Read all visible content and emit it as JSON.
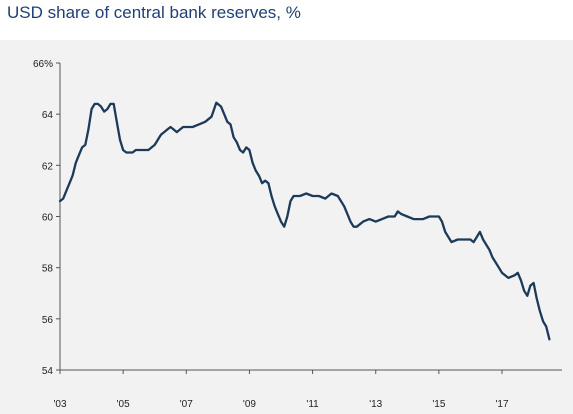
{
  "title": "USD share of central bank reserves, %",
  "colors": {
    "line": "#1c3a5a",
    "axis": "#555555",
    "panel": "#f2f2f2",
    "title": "#1f3f75"
  },
  "chart_data": {
    "type": "line",
    "title": "USD share of central bank reserves, %",
    "xlabel": "",
    "ylabel": "",
    "xlim": [
      2003.0,
      2018.9
    ],
    "ylim": [
      54,
      66
    ],
    "grid": false,
    "y_ticks": [
      {
        "value": 66,
        "label": "66%"
      },
      {
        "value": 64,
        "label": "64"
      },
      {
        "value": 62,
        "label": "62"
      },
      {
        "value": 60,
        "label": "60"
      },
      {
        "value": 58,
        "label": "58"
      },
      {
        "value": 56,
        "label": "56"
      },
      {
        "value": 54,
        "label": "54"
      }
    ],
    "x_ticks": [
      {
        "value": 2003,
        "label": "'03"
      },
      {
        "value": 2005,
        "label": "'05"
      },
      {
        "value": 2007,
        "label": "'07"
      },
      {
        "value": 2009,
        "label": "'09"
      },
      {
        "value": 2011,
        "label": "'11"
      },
      {
        "value": 2013,
        "label": "'13"
      },
      {
        "value": 2015,
        "label": "'15"
      },
      {
        "value": 2017,
        "label": "'17"
      }
    ],
    "series": [
      {
        "x": [
          2003.0,
          2003.1,
          2003.2,
          2003.3,
          2003.4,
          2003.5,
          2003.6,
          2003.7,
          2003.8,
          2003.9,
          2004.0,
          2004.1,
          2004.2,
          2004.3,
          2004.4,
          2004.5,
          2004.6,
          2004.7,
          2004.8,
          2004.9,
          2005.0,
          2005.1,
          2005.2,
          2005.3,
          2005.4,
          2005.6,
          2005.8,
          2006.0,
          2006.2,
          2006.3,
          2006.4,
          2006.5,
          2006.6,
          2006.7,
          2006.8,
          2006.9,
          2007.0,
          2007.2,
          2007.4,
          2007.6,
          2007.8,
          2007.95,
          2008.1,
          2008.2,
          2008.3,
          2008.4,
          2008.5,
          2008.6,
          2008.7,
          2008.8,
          2008.9,
          2009.0,
          2009.1,
          2009.2,
          2009.3,
          2009.4,
          2009.5,
          2009.6,
          2009.7,
          2009.8,
          2009.9,
          2010.0,
          2010.1,
          2010.2,
          2010.3,
          2010.4,
          2010.5,
          2010.6,
          2010.8,
          2011.0,
          2011.2,
          2011.4,
          2011.6,
          2011.8,
          2012.0,
          2012.2,
          2012.3,
          2012.4,
          2012.5,
          2012.6,
          2012.8,
          2013.0,
          2013.2,
          2013.4,
          2013.6,
          2013.7,
          2013.8,
          2014.0,
          2014.2,
          2014.5,
          2014.7,
          2014.9,
          2015.0,
          2015.1,
          2015.2,
          2015.4,
          2015.6,
          2015.8,
          2015.9,
          2016.0,
          2016.1,
          2016.2,
          2016.3,
          2016.4,
          2016.5,
          2016.6,
          2016.7,
          2016.8,
          2016.9,
          2017.0,
          2017.2,
          2017.4,
          2017.5,
          2017.6,
          2017.7,
          2017.8,
          2017.9,
          2018.0,
          2018.1,
          2018.2,
          2018.3,
          2018.4,
          2018.5
        ],
        "y": [
          60.6,
          60.7,
          61.0,
          61.3,
          61.6,
          62.1,
          62.4,
          62.7,
          62.8,
          63.4,
          64.2,
          64.4,
          64.4,
          64.3,
          64.1,
          64.2,
          64.4,
          64.4,
          63.7,
          63.0,
          62.6,
          62.5,
          62.5,
          62.5,
          62.6,
          62.6,
          62.6,
          62.8,
          63.2,
          63.3,
          63.4,
          63.5,
          63.4,
          63.3,
          63.4,
          63.5,
          63.5,
          63.5,
          63.6,
          63.7,
          63.9,
          64.45,
          64.3,
          64.0,
          63.7,
          63.6,
          63.1,
          62.9,
          62.6,
          62.5,
          62.7,
          62.6,
          62.1,
          61.8,
          61.6,
          61.3,
          61.4,
          61.3,
          60.8,
          60.4,
          60.1,
          59.8,
          59.6,
          60.0,
          60.6,
          60.8,
          60.8,
          60.8,
          60.9,
          60.8,
          60.8,
          60.7,
          60.9,
          60.8,
          60.4,
          59.8,
          59.6,
          59.6,
          59.7,
          59.8,
          59.9,
          59.8,
          59.9,
          60.0,
          60.0,
          60.2,
          60.1,
          60.0,
          59.9,
          59.9,
          60.0,
          60.0,
          60.0,
          59.8,
          59.4,
          59.0,
          59.1,
          59.1,
          59.1,
          59.1,
          59.0,
          59.2,
          59.4,
          59.1,
          58.9,
          58.7,
          58.4,
          58.2,
          58.0,
          57.8,
          57.6,
          57.7,
          57.8,
          57.5,
          57.1,
          56.9,
          57.3,
          57.4,
          56.8,
          56.3,
          55.9,
          55.7,
          55.2
        ]
      }
    ]
  }
}
